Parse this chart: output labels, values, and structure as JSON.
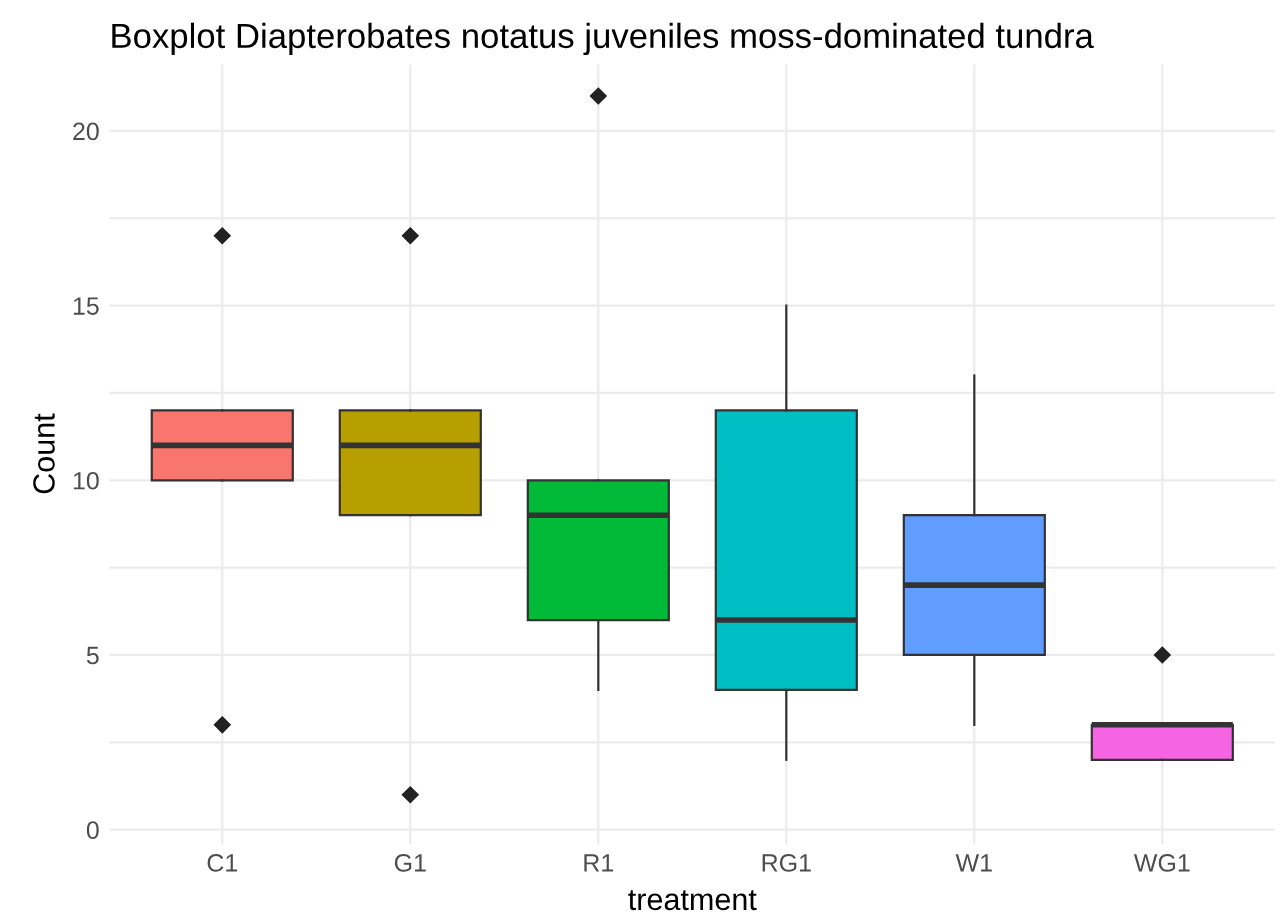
{
  "chart_data": {
    "type": "box",
    "title": "Boxplot Diapterobates notatus juveniles moss-dominated tundra",
    "xlabel": "treatment",
    "ylabel": "Count",
    "categories": [
      "C1",
      "G1",
      "R1",
      "RG1",
      "W1",
      "WG1"
    ],
    "colors": [
      "#f8766d",
      "#b79f00",
      "#00ba38",
      "#00bfc4",
      "#619cff",
      "#f564e3"
    ],
    "boxes": [
      {
        "low": 10,
        "q1": 10,
        "median": 11,
        "q3": 12,
        "high": 12,
        "outliers": [
          17,
          3
        ]
      },
      {
        "low": 9,
        "q1": 9,
        "median": 11,
        "q3": 12,
        "high": 12,
        "outliers": [
          17,
          1
        ]
      },
      {
        "low": 4,
        "q1": 6,
        "median": 9,
        "q3": 10,
        "high": 10,
        "outliers": [
          21
        ]
      },
      {
        "low": 2,
        "q1": 4,
        "median": 6,
        "q3": 12,
        "high": 15
      },
      {
        "low": 3,
        "q1": 5,
        "median": 7,
        "q3": 9,
        "high": 13
      },
      {
        "low": 2,
        "q1": 2,
        "median": 3,
        "q3": 3,
        "high": 3,
        "outliers": [
          5
        ]
      }
    ],
    "ylim": [
      -0.4,
      21.9
    ],
    "yticks": [
      0,
      {
        "value": 2.5,
        "label": null
      },
      5,
      {
        "value": 7.5,
        "label": null
      },
      10,
      {
        "value": 12.5,
        "label": null
      },
      15,
      {
        "value": 17.5,
        "label": null
      },
      20
    ],
    "grid": true
  }
}
